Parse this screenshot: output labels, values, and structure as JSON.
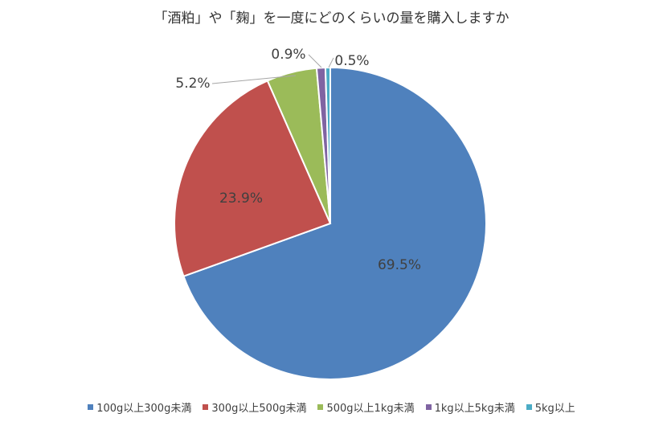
{
  "chart_data": {
    "type": "pie",
    "title": "「酒粕」や「麹」を一度にどのくらいの量を購入しますか",
    "categories": [
      "100g以上300g未満",
      "300g以上500g未満",
      "500g以上1kg未満",
      "1kg以上5kg未満",
      "5kg以上"
    ],
    "values": [
      69.5,
      23.9,
      5.2,
      0.9,
      0.5
    ],
    "data_labels": [
      "69.5%",
      "23.9%",
      "5.2%",
      "0.9%",
      "0.5%"
    ],
    "colors": [
      "#4F81BD",
      "#C0504D",
      "#9BBB59",
      "#8064A2",
      "#4BACC6"
    ],
    "legend_position": "bottom",
    "start_angle": "12 o'clock",
    "direction": "clockwise"
  },
  "legend": {
    "items": [
      {
        "label": "100g以上300g未満",
        "color": "#4F81BD"
      },
      {
        "label": "300g以上500g未満",
        "color": "#C0504D"
      },
      {
        "label": "500g以上1kg未満",
        "color": "#9BBB59"
      },
      {
        "label": "1kg以上5kg未満",
        "color": "#8064A2"
      },
      {
        "label": "5kg以上",
        "color": "#4BACC6"
      }
    ]
  }
}
